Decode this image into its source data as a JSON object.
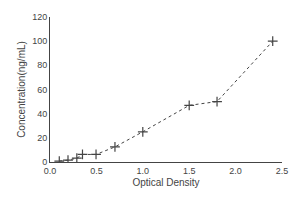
{
  "chart_data": {
    "type": "line",
    "x": [
      0.1,
      0.194,
      0.289,
      0.35,
      0.496,
      0.7,
      1.0,
      1.5,
      1.8,
      2.4
    ],
    "values": [
      0.78,
      1.56,
      3.13,
      6.25,
      6.25,
      12.5,
      25.0,
      46.88,
      50.0,
      100.0
    ],
    "xlabel": "Optical Density",
    "ylabel": "Concentration(ng/mL)",
    "xlim": [
      0,
      2.5
    ],
    "ylim": [
      0,
      120
    ],
    "xticks": [
      {
        "value": 0,
        "label": "0.0"
      },
      0.5,
      {
        "value": 1,
        "label": "1.0"
      },
      1.5,
      {
        "value": 2,
        "label": "2.0"
      },
      2.5
    ],
    "yticks": [
      0,
      20,
      40,
      60,
      80,
      100,
      120
    ],
    "color": "#444444",
    "marker": "plus",
    "line_style": "dotted",
    "grid": false
  }
}
